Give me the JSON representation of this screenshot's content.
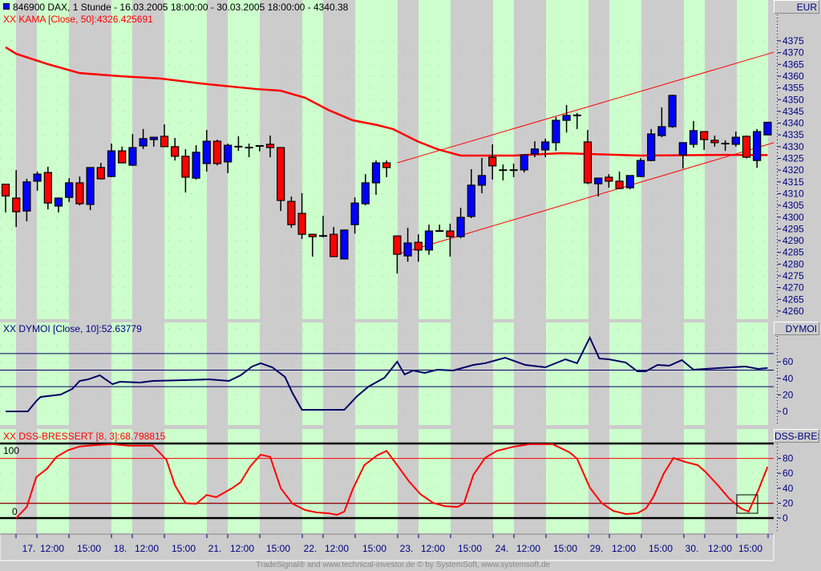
{
  "chart_data": [
    {
      "type": "candlestick",
      "title": "846900  DAX, 1 Stunde - 16.03.2005 18:00:00 - 30.03.2005 18:00:00 - 4340.38",
      "currency_label": "EUR",
      "ylim": [
        4258,
        4378
      ],
      "yticks": [
        4260,
        4265,
        4270,
        4275,
        4280,
        4285,
        4290,
        4295,
        4300,
        4305,
        4310,
        4315,
        4320,
        4325,
        4330,
        4335,
        4340,
        4345,
        4350,
        4355,
        4360,
        4365,
        4370,
        4375
      ],
      "candles_ohlc": [
        [
          4314,
          4314,
          4302,
          4309
        ],
        [
          4308.1,
          4320,
          4295.8,
          4302.3
        ],
        [
          4302.6,
          4316.3,
          4298.2,
          4315
        ],
        [
          4315.3,
          4319.4,
          4311.2,
          4318.3
        ],
        [
          4319,
          4321.4,
          4303.3,
          4306
        ],
        [
          4304.7,
          4308.4,
          4302,
          4308.1
        ],
        [
          4308.4,
          4316.6,
          4306.4,
          4314.6
        ],
        [
          4314.6,
          4317.3,
          4305,
          4305.7
        ],
        [
          4305.4,
          4321.1,
          4303,
          4321.1
        ],
        [
          4321.1,
          4323.1,
          4316,
          4316.3
        ],
        [
          4317.3,
          4331.3,
          4317,
          4328.2
        ],
        [
          4328.2,
          4330,
          4323,
          4323.1
        ],
        [
          4322.1,
          4335.4,
          4321.8,
          4329.6
        ],
        [
          4330.3,
          4337.5,
          4329,
          4333.4
        ],
        [
          4333,
          4334,
          4330,
          4334
        ],
        [
          4334.4,
          4339.5,
          4330,
          4330
        ],
        [
          4330,
          4333.7,
          4324.1,
          4325.9
        ],
        [
          4325.9,
          4328.9,
          4310.5,
          4317
        ],
        [
          4316.6,
          4330.6,
          4316,
          4327.6
        ],
        [
          4322.8,
          4337.1,
          4319.4,
          4332.3
        ],
        [
          4332.3,
          4333,
          4322,
          4322.8
        ],
        [
          4323.5,
          4331.3,
          4318.7,
          4330.6
        ],
        [
          4330,
          4334.4,
          4328.2,
          4330
        ],
        [
          4329.6,
          4331.3,
          4325.5,
          4329.6
        ],
        [
          4330.3,
          4330.6,
          4328,
          4330.3
        ],
        [
          4331,
          4334.7,
          4325.5,
          4329.6
        ],
        [
          4329.6,
          4329.6,
          4302.6,
          4307.1
        ],
        [
          4306.7,
          4308.8,
          4295.5,
          4296.8
        ],
        [
          4301.6,
          4310.2,
          4290.7,
          4292.7
        ],
        [
          4292.7,
          4292.7,
          4283.2,
          4291.7
        ],
        [
          4292,
          4300.6,
          4291.4,
          4292
        ],
        [
          4292.7,
          4295.8,
          4283.2,
          4283.2
        ],
        [
          4282.2,
          4294.8,
          4282,
          4294.5
        ],
        [
          4296.8,
          4308.4,
          4293,
          4306
        ],
        [
          4305.7,
          4318.3,
          4305,
          4314.6
        ],
        [
          4314.6,
          4324.1,
          4309.5,
          4323.1
        ],
        [
          4323.1,
          4324.1,
          4317,
          4321.1
        ],
        [
          4292,
          4292,
          4276,
          4284.2
        ],
        [
          4283.5,
          4295.5,
          4281,
          4289
        ],
        [
          4289.3,
          4292.7,
          4281,
          4286
        ],
        [
          4286,
          4296.8,
          4284,
          4294.1
        ],
        [
          4294.1,
          4296.8,
          4294,
          4294.1
        ],
        [
          4294.1,
          4297.2,
          4283.2,
          4291.7
        ],
        [
          4291.7,
          4304,
          4291,
          4299.9
        ],
        [
          4300.3,
          4320.4,
          4299.6,
          4313.6
        ],
        [
          4313.6,
          4325.2,
          4310.2,
          4317.7
        ],
        [
          4325.5,
          4331,
          4316,
          4321.8
        ],
        [
          4320,
          4322.4,
          4315.6,
          4320
        ],
        [
          4320,
          4322.8,
          4317,
          4320
        ],
        [
          4320.1,
          4326.5,
          4319,
          4326.5
        ],
        [
          4326.9,
          4332.3,
          4325.5,
          4329
        ],
        [
          4328.6,
          4333.4,
          4325.5,
          4332
        ],
        [
          4331.7,
          4342.6,
          4328.2,
          4341.2
        ],
        [
          4341.2,
          4347.7,
          4336,
          4343.3
        ],
        [
          4343.3,
          4344.3,
          4337.5,
          4343.3
        ],
        [
          4332,
          4337.1,
          4314,
          4314.6
        ],
        [
          4314.2,
          4316.6,
          4308.8,
          4316.6
        ],
        [
          4317,
          4318.3,
          4312.5,
          4315.3
        ],
        [
          4315.3,
          4319.4,
          4311.9,
          4312.2
        ],
        [
          4312.5,
          4317.7,
          4311.9,
          4317.7
        ],
        [
          4317.3,
          4325.2,
          4317,
          4324.1
        ],
        [
          4324.1,
          4337.5,
          4323.8,
          4335.4
        ],
        [
          4334.7,
          4346.7,
          4334,
          4338.5
        ],
        [
          4338.5,
          4352.1,
          4338,
          4351.8
        ],
        [
          4326.5,
          4331.7,
          4320.7,
          4331.7
        ],
        [
          4331,
          4340.9,
          4329.6,
          4336.8
        ],
        [
          4336.4,
          4336.4,
          4328.6,
          4333
        ],
        [
          4332.7,
          4334.7,
          4330,
          4331.7
        ],
        [
          4331.3,
          4332.7,
          4328.2,
          4331.3
        ],
        [
          4331,
          4336.4,
          4330,
          4334
        ],
        [
          4334.4,
          4334.7,
          4325,
          4325.5
        ],
        [
          4324.1,
          4337.5,
          4321,
          4336.4
        ],
        [
          4335,
          4340.4,
          4335,
          4340.38
        ]
      ],
      "kama": {
        "label": "XX KAMA [Close, 50]:4326.425691",
        "color": "#ff0000",
        "points": [
          [
            0,
            4372.3
          ],
          [
            1,
            4369.5
          ],
          [
            4,
            4365.1
          ],
          [
            7,
            4361.3
          ],
          [
            10.8,
            4360
          ],
          [
            14.6,
            4359
          ],
          [
            18.4,
            4356.9
          ],
          [
            23.7,
            4354.5
          ],
          [
            26,
            4353.8
          ],
          [
            28.3,
            4350.8
          ],
          [
            30.5,
            4345.6
          ],
          [
            32.8,
            4341.2
          ],
          [
            35.1,
            4339.2
          ],
          [
            36.6,
            4337.5
          ],
          [
            38.9,
            4332.3
          ],
          [
            40.8,
            4328.9
          ],
          [
            43,
            4326.2
          ],
          [
            48,
            4326.2
          ],
          [
            52.5,
            4327.2
          ],
          [
            60,
            4326.2
          ],
          [
            67.7,
            4326.5
          ],
          [
            72,
            4326.4
          ]
        ]
      },
      "trend_channel": {
        "color": "#ff0000",
        "upper": [
          [
            37,
            4323.1
          ],
          [
            72.6,
            4370.2
          ]
        ],
        "lower": [
          [
            37,
            4284.2
          ],
          [
            72.6,
            4331.7
          ]
        ]
      },
      "up_color": "#0000ff",
      "down_color": "#ff0000"
    },
    {
      "type": "line",
      "title": "XX DYMOI [Close, 10]:52.63779",
      "axis_label": "DYMOI",
      "yticks": [
        0,
        20,
        40,
        60
      ],
      "hlines": [
        30,
        50,
        70
      ],
      "color": "#000066",
      "points": [
        [
          0,
          0
        ],
        [
          2.1,
          0
        ],
        [
          2.9,
          12.6
        ],
        [
          3.3,
          17.5
        ],
        [
          5.2,
          20.4
        ],
        [
          6.3,
          27.2
        ],
        [
          7,
          36.9
        ],
        [
          7.8,
          38.8
        ],
        [
          8.9,
          43.7
        ],
        [
          10.1,
          33
        ],
        [
          10.8,
          35.9
        ],
        [
          12.7,
          35
        ],
        [
          13.9,
          36.9
        ],
        [
          16.9,
          37.9
        ],
        [
          19.2,
          38.8
        ],
        [
          21.1,
          36.9
        ],
        [
          22.2,
          43.7
        ],
        [
          23.3,
          54.4
        ],
        [
          24.1,
          58.3
        ],
        [
          25.2,
          53.4
        ],
        [
          26.4,
          41.7
        ],
        [
          27.1,
          22.3
        ],
        [
          28,
          1.9
        ],
        [
          32,
          1.9
        ],
        [
          33.2,
          18.4
        ],
        [
          34.3,
          30.1
        ],
        [
          35.8,
          40.8
        ],
        [
          37,
          60.2
        ],
        [
          37.7,
          44.7
        ],
        [
          38.5,
          49.5
        ],
        [
          39.6,
          46.6
        ],
        [
          40.8,
          50.5
        ],
        [
          42.3,
          49.5
        ],
        [
          44.2,
          56.3
        ],
        [
          45.3,
          58.3
        ],
        [
          47.2,
          65
        ],
        [
          49.1,
          56.3
        ],
        [
          51,
          53.4
        ],
        [
          52.9,
          63.1
        ],
        [
          54,
          58.3
        ],
        [
          55.2,
          89.3
        ],
        [
          56.1,
          64
        ],
        [
          57,
          63.1
        ],
        [
          58.6,
          59.2
        ],
        [
          59.7,
          48.5
        ],
        [
          60.5,
          48.5
        ],
        [
          61.6,
          56.3
        ],
        [
          62.7,
          55.3
        ],
        [
          63.9,
          62.1
        ],
        [
          65,
          50.5
        ],
        [
          66.1,
          51.5
        ],
        [
          69.9,
          54.4
        ],
        [
          71.1,
          51.5
        ],
        [
          72,
          52.6
        ]
      ]
    },
    {
      "type": "line",
      "title": "XX DSS-BRESSERT [8, 3]:68.798815",
      "axis_label": "DSS-BRESSERT",
      "yticks": [
        0,
        20,
        40,
        60,
        80
      ],
      "left_labels": [
        "100",
        "0"
      ],
      "bound_lines": [
        0,
        100
      ],
      "signal_lines": [
        20,
        80
      ],
      "color": "#ff0000",
      "points": [
        [
          1,
          0
        ],
        [
          2,
          15
        ],
        [
          2.9,
          55
        ],
        [
          3.9,
          66
        ],
        [
          4.8,
          82
        ],
        [
          5.9,
          91
        ],
        [
          7,
          96
        ],
        [
          8.6,
          98
        ],
        [
          10.1,
          99
        ],
        [
          11.6,
          97
        ],
        [
          13.9,
          97
        ],
        [
          14.6,
          87
        ],
        [
          15.2,
          78
        ],
        [
          16,
          44
        ],
        [
          17,
          20
        ],
        [
          18,
          19
        ],
        [
          19,
          31
        ],
        [
          19.9,
          28
        ],
        [
          21.4,
          40
        ],
        [
          22.2,
          48
        ],
        [
          23.1,
          69
        ],
        [
          24.1,
          85
        ],
        [
          25,
          82
        ],
        [
          26,
          40
        ],
        [
          27.1,
          19.4
        ],
        [
          28.3,
          10.8
        ],
        [
          29.4,
          7.5
        ],
        [
          30.5,
          6.5
        ],
        [
          31.3,
          4.3
        ],
        [
          32,
          8.6
        ],
        [
          32.8,
          38.7
        ],
        [
          33.9,
          71
        ],
        [
          35.1,
          84
        ],
        [
          36,
          90
        ],
        [
          37,
          71
        ],
        [
          38.1,
          49.5
        ],
        [
          39.2,
          32
        ],
        [
          40.4,
          20.4
        ],
        [
          41.5,
          16
        ],
        [
          42.7,
          15
        ],
        [
          43.3,
          19.4
        ],
        [
          44.2,
          58
        ],
        [
          45.3,
          80.6
        ],
        [
          46.4,
          90
        ],
        [
          48,
          95.7
        ],
        [
          49.5,
          99
        ],
        [
          51.7,
          99
        ],
        [
          53.3,
          88
        ],
        [
          54,
          79.6
        ],
        [
          55.2,
          40.9
        ],
        [
          56.3,
          20.4
        ],
        [
          57.4,
          9.7
        ],
        [
          58.6,
          5.4
        ],
        [
          59.7,
          6.5
        ],
        [
          60.5,
          12.9
        ],
        [
          61.2,
          28
        ],
        [
          62.2,
          60
        ],
        [
          63.1,
          80.6
        ],
        [
          64.2,
          75.3
        ],
        [
          65.4,
          71
        ],
        [
          66.1,
          62.4
        ],
        [
          67.3,
          44
        ],
        [
          68.4,
          25.8
        ],
        [
          69.5,
          12.9
        ],
        [
          70.2,
          8.6
        ],
        [
          71.1,
          36.6
        ],
        [
          72,
          68.8
        ]
      ]
    }
  ],
  "x_axis": {
    "labels": [
      "17.",
      "12:00",
      "15:00",
      "18.",
      "12:00",
      "15:00",
      "21.",
      "12:00",
      "15:00",
      "22.",
      "12:00",
      "15:00",
      "23.",
      "12:00",
      "15:00",
      "24.",
      "12:00",
      "15:00",
      "29.",
      "12:00",
      "15:00",
      "30.",
      "12:00",
      "15:00"
    ]
  },
  "footer": "TradeSignal® and www.technical-investor.de © by  SystemSoft, www.systemsoft.de"
}
